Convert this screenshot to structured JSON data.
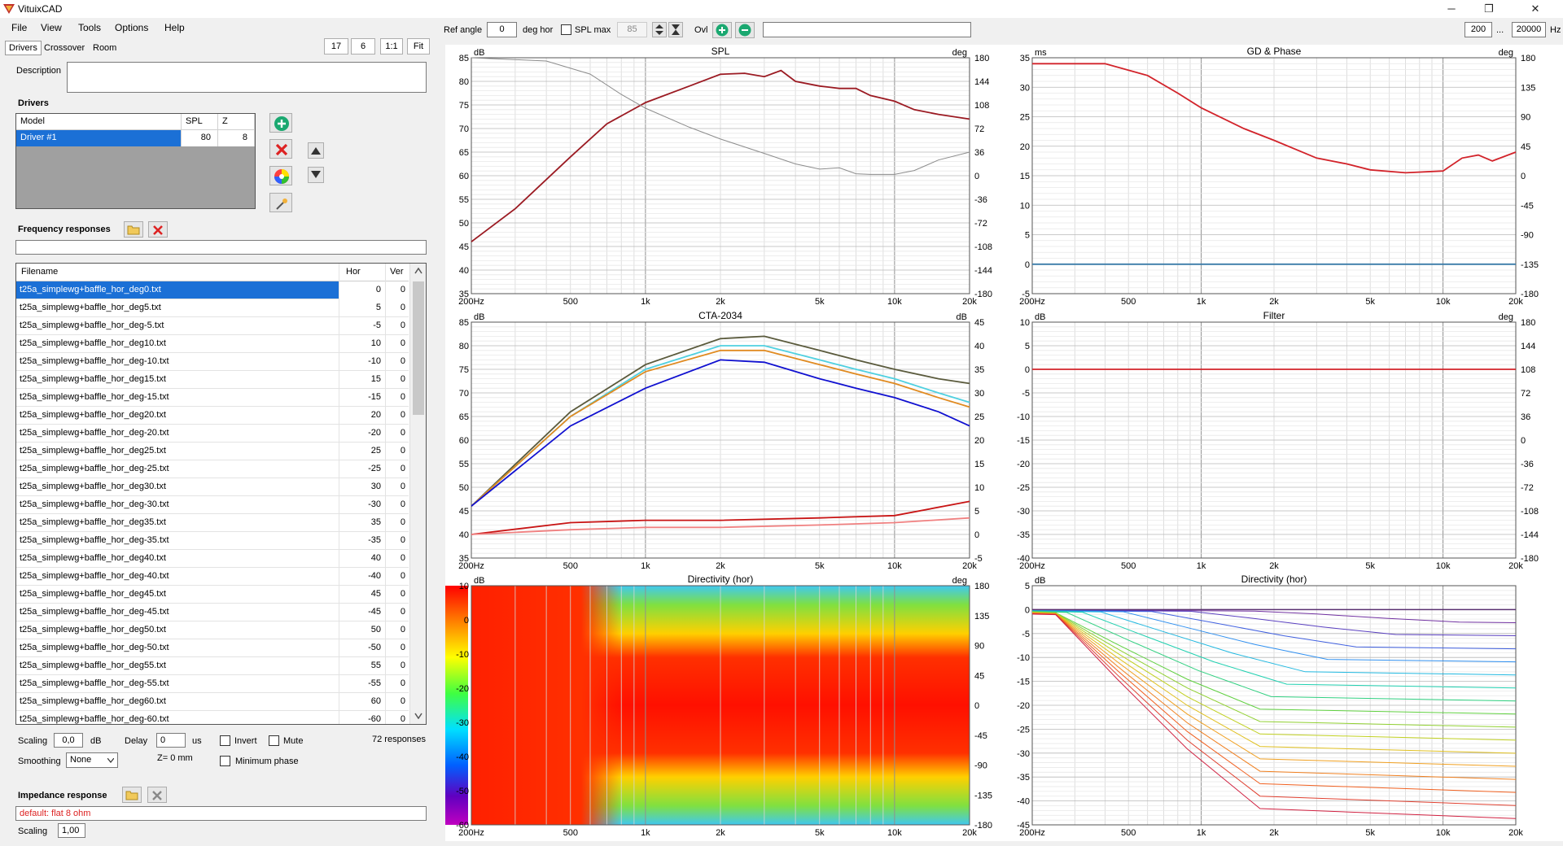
{
  "window": {
    "title": "VituixCAD",
    "min": "─",
    "max": "❐",
    "close": "✕"
  },
  "menu": [
    "File",
    "View",
    "Tools",
    "Options",
    "Help"
  ],
  "tabs": [
    "Drivers",
    "Crossover",
    "Room"
  ],
  "view_buttons": [
    "17",
    "6",
    "1:1",
    "Fit"
  ],
  "description_label": "Description",
  "drivers": {
    "title": "Drivers",
    "headers": [
      "Model",
      "SPL",
      "Z"
    ],
    "rows": [
      {
        "model": "Driver #1",
        "spl": "80",
        "z": "8"
      }
    ]
  },
  "freq": {
    "title": "Frequency responses",
    "headers": [
      "Filename",
      "Hor",
      "Ver"
    ],
    "rows": [
      {
        "f": "t25a_simplewg+baffle_hor_deg0.txt",
        "h": "0",
        "v": "0"
      },
      {
        "f": "t25a_simplewg+baffle_hor_deg5.txt",
        "h": "5",
        "v": "0"
      },
      {
        "f": "t25a_simplewg+baffle_hor_deg-5.txt",
        "h": "-5",
        "v": "0"
      },
      {
        "f": "t25a_simplewg+baffle_hor_deg10.txt",
        "h": "10",
        "v": "0"
      },
      {
        "f": "t25a_simplewg+baffle_hor_deg-10.txt",
        "h": "-10",
        "v": "0"
      },
      {
        "f": "t25a_simplewg+baffle_hor_deg15.txt",
        "h": "15",
        "v": "0"
      },
      {
        "f": "t25a_simplewg+baffle_hor_deg-15.txt",
        "h": "-15",
        "v": "0"
      },
      {
        "f": "t25a_simplewg+baffle_hor_deg20.txt",
        "h": "20",
        "v": "0"
      },
      {
        "f": "t25a_simplewg+baffle_hor_deg-20.txt",
        "h": "-20",
        "v": "0"
      },
      {
        "f": "t25a_simplewg+baffle_hor_deg25.txt",
        "h": "25",
        "v": "0"
      },
      {
        "f": "t25a_simplewg+baffle_hor_deg-25.txt",
        "h": "-25",
        "v": "0"
      },
      {
        "f": "t25a_simplewg+baffle_hor_deg30.txt",
        "h": "30",
        "v": "0"
      },
      {
        "f": "t25a_simplewg+baffle_hor_deg-30.txt",
        "h": "-30",
        "v": "0"
      },
      {
        "f": "t25a_simplewg+baffle_hor_deg35.txt",
        "h": "35",
        "v": "0"
      },
      {
        "f": "t25a_simplewg+baffle_hor_deg-35.txt",
        "h": "-35",
        "v": "0"
      },
      {
        "f": "t25a_simplewg+baffle_hor_deg40.txt",
        "h": "40",
        "v": "0"
      },
      {
        "f": "t25a_simplewg+baffle_hor_deg-40.txt",
        "h": "-40",
        "v": "0"
      },
      {
        "f": "t25a_simplewg+baffle_hor_deg45.txt",
        "h": "45",
        "v": "0"
      },
      {
        "f": "t25a_simplewg+baffle_hor_deg-45.txt",
        "h": "-45",
        "v": "0"
      },
      {
        "f": "t25a_simplewg+baffle_hor_deg50.txt",
        "h": "50",
        "v": "0"
      },
      {
        "f": "t25a_simplewg+baffle_hor_deg-50.txt",
        "h": "-50",
        "v": "0"
      },
      {
        "f": "t25a_simplewg+baffle_hor_deg55.txt",
        "h": "55",
        "v": "0"
      },
      {
        "f": "t25a_simplewg+baffle_hor_deg-55.txt",
        "h": "-55",
        "v": "0"
      },
      {
        "f": "t25a_simplewg+baffle_hor_deg60.txt",
        "h": "60",
        "v": "0"
      },
      {
        "f": "t25a_simplewg+baffle_hor_deg-60.txt",
        "h": "-60",
        "v": "0"
      }
    ]
  },
  "scaling": {
    "label": "Scaling",
    "value": "0,0",
    "unit": "dB"
  },
  "delay": {
    "label": "Delay",
    "value": "0",
    "unit": "us"
  },
  "invert": "Invert",
  "mute": "Mute",
  "responses_count": "72 responses",
  "smoothing": {
    "label": "Smoothing",
    "value": "None"
  },
  "z_label": "Z= 0 mm",
  "min_phase": "Minimum phase",
  "impedance": {
    "title": "Impedance response",
    "file": "default: flat 8 ohm",
    "scaling_label": "Scaling",
    "scaling_value": "1,00"
  },
  "toolbar": {
    "ref_angle_label": "Ref angle",
    "ref_angle": "0",
    "deg_hor": "deg hor",
    "spl_max_label": "SPL max",
    "spl_max": "85",
    "ovl": "Ovl",
    "freq_from": "200",
    "dots": "...",
    "freq_to": "20000",
    "hz": "Hz"
  },
  "colors": {
    "accent": "#1b70d6",
    "spl_red": "#9b1a22",
    "gd_red": "#d2232a"
  },
  "chart_data": [
    {
      "type": "line",
      "title": "SPL",
      "ylabel_left": "dB",
      "ylabel_right": "deg",
      "xlabel": "",
      "xticks": [
        "200Hz",
        "500",
        "1k",
        "2k",
        "5k",
        "10k",
        "20k"
      ],
      "yticks_left": [
        "85",
        "80",
        "75",
        "70",
        "65",
        "60",
        "55",
        "50",
        "45",
        "40",
        "35"
      ],
      "yticks_right": [
        "180",
        "144",
        "108",
        "72",
        "36",
        "0",
        "-36",
        "-72",
        "-108",
        "-144",
        "-180"
      ],
      "ylim": [
        35,
        85
      ],
      "xlim": [
        200,
        20000
      ],
      "series": [
        {
          "name": "SPL",
          "color": "#9b1a22",
          "x": [
            200,
            300,
            500,
            700,
            1000,
            1500,
            2000,
            2500,
            3000,
            3500,
            4000,
            5000,
            6000,
            7000,
            8000,
            10000,
            12000,
            15000,
            20000
          ],
          "y": [
            46,
            53,
            64,
            71,
            75.5,
            79,
            81.5,
            81.7,
            81,
            82.3,
            80,
            79,
            78.5,
            78.5,
            77,
            75.8,
            74,
            73,
            72
          ]
        },
        {
          "name": "Phase",
          "color": "#8c8c8c",
          "axis": "right",
          "x": [
            200,
            400,
            600,
            800,
            1000,
            1500,
            2000,
            3000,
            4000,
            5000,
            6000,
            7000,
            8000,
            10000,
            12000,
            15000,
            20000
          ],
          "y": [
            180,
            175,
            155,
            124,
            103,
            74,
            56,
            34,
            18,
            10,
            12,
            3,
            2,
            2,
            8,
            24,
            36
          ]
        }
      ]
    },
    {
      "type": "line",
      "title": "GD & Phase",
      "ylabel_left": "ms",
      "ylabel_right": "deg",
      "xticks": [
        "200Hz",
        "500",
        "1k",
        "2k",
        "5k",
        "10k",
        "20k"
      ],
      "yticks_left": [
        "35",
        "30",
        "25",
        "20",
        "15",
        "10",
        "5",
        "0",
        "-5"
      ],
      "yticks_right": [
        "180",
        "135",
        "90",
        "45",
        "0",
        "-45",
        "-90",
        "-135",
        "-180"
      ],
      "ylim": [
        -5,
        35
      ],
      "xlim": [
        200,
        20000
      ],
      "series": [
        {
          "name": "GD",
          "color": "#d2232a",
          "x": [
            200,
            400,
            600,
            800,
            1000,
            1500,
            2000,
            3000,
            4000,
            5000,
            7000,
            10000,
            12000,
            14000,
            16000,
            20000
          ],
          "y": [
            34,
            34,
            32,
            29,
            26.5,
            23,
            21,
            18,
            17,
            16,
            15.5,
            15.8,
            18,
            18.5,
            17.5,
            19
          ]
        },
        {
          "name": "Phase",
          "color": "#3a7ca8",
          "axis": "right",
          "x": [
            200,
            20000
          ],
          "y": [
            -135,
            -135
          ]
        }
      ]
    },
    {
      "type": "line",
      "title": "CTA-2034",
      "ylabel_left": "dB",
      "ylabel_right": "dB",
      "xticks": [
        "200Hz",
        "500",
        "1k",
        "2k",
        "5k",
        "10k",
        "20k"
      ],
      "yticks_left": [
        "85",
        "80",
        "75",
        "70",
        "65",
        "60",
        "55",
        "50",
        "45",
        "40",
        "35"
      ],
      "yticks_right": [
        "45",
        "40",
        "35",
        "30",
        "25",
        "20",
        "15",
        "10",
        "5",
        "0",
        "-5"
      ],
      "ylim": [
        35,
        85
      ],
      "xlim": [
        200,
        20000
      ],
      "series": [
        {
          "name": "On-axis",
          "color": "#5a5a3c",
          "x": [
            200,
            500,
            1000,
            2000,
            3000,
            5000,
            7000,
            10000,
            15000,
            20000
          ],
          "y": [
            46,
            66,
            76,
            81.5,
            82,
            79,
            77,
            75,
            73,
            72
          ]
        },
        {
          "name": "Listening window",
          "color": "#4fd0e0",
          "x": [
            200,
            500,
            1000,
            2000,
            3000,
            5000,
            7000,
            10000,
            15000,
            20000
          ],
          "y": [
            46,
            65,
            75,
            80,
            80,
            77,
            75,
            73,
            70,
            68
          ]
        },
        {
          "name": "Early reflections",
          "color": "#e08a20",
          "x": [
            200,
            500,
            1000,
            2000,
            3000,
            5000,
            7000,
            10000,
            15000,
            20000
          ],
          "y": [
            46,
            65,
            74.5,
            79,
            79,
            76,
            74,
            72,
            69,
            67
          ]
        },
        {
          "name": "Sound power",
          "color": "#1010d0",
          "x": [
            200,
            500,
            1000,
            2000,
            3000,
            5000,
            7000,
            10000,
            15000,
            20000
          ],
          "y": [
            46,
            63,
            71,
            77,
            76.5,
            73,
            71,
            69,
            66,
            63
          ]
        },
        {
          "name": "SP DI",
          "color": "#c81414",
          "axis": "right",
          "x": [
            200,
            500,
            1000,
            2000,
            5000,
            10000,
            20000
          ],
          "y": [
            0,
            2.5,
            3,
            3,
            3.5,
            4,
            7
          ]
        },
        {
          "name": "ER DI",
          "color": "#f08080",
          "axis": "right",
          "x": [
            200,
            500,
            1000,
            2000,
            5000,
            10000,
            20000
          ],
          "y": [
            0,
            1,
            1.5,
            1.5,
            2,
            2.5,
            3.5
          ]
        }
      ]
    },
    {
      "type": "line",
      "title": "Filter",
      "ylabel_left": "dB",
      "ylabel_right": "deg",
      "xticks": [
        "200Hz",
        "500",
        "1k",
        "2k",
        "5k",
        "10k",
        "20k"
      ],
      "yticks_left": [
        "10",
        "5",
        "0",
        "-5",
        "-10",
        "-15",
        "-20",
        "-25",
        "-30",
        "-35",
        "-40"
      ],
      "yticks_right": [
        "180",
        "144",
        "108",
        "72",
        "36",
        "0",
        "-36",
        "-72",
        "-108",
        "-144",
        "-180"
      ],
      "ylim": [
        -40,
        10
      ],
      "xlim": [
        200,
        20000
      ],
      "series": [
        {
          "name": "Filter",
          "color": "#d2232a",
          "x": [
            200,
            20000
          ],
          "y": [
            0,
            0
          ]
        }
      ]
    },
    {
      "type": "heatmap",
      "title": "Directivity (hor)",
      "ylabel_left": "dB",
      "ylabel_right": "deg",
      "xticks": [
        "200Hz",
        "500",
        "1k",
        "2k",
        "5k",
        "10k",
        "20k"
      ],
      "yticks_left": [
        "10",
        "0",
        "-10",
        "-20",
        "-30",
        "-40",
        "-50",
        "-60"
      ],
      "yticks_right": [
        "180",
        "135",
        "90",
        "45",
        "0",
        "-45",
        "-90",
        "-135",
        "-180"
      ],
      "ylim": [
        -180,
        180
      ],
      "xlim": [
        200,
        20000
      ]
    },
    {
      "type": "line",
      "title": "Directivity (hor)",
      "ylabel_left": "dB",
      "xticks": [
        "200Hz",
        "500",
        "1k",
        "2k",
        "5k",
        "10k",
        "20k"
      ],
      "yticks_left": [
        "5",
        "0",
        "-5",
        "-10",
        "-15",
        "-20",
        "-25",
        "-30",
        "-35",
        "-40",
        "-45"
      ],
      "ylim": [
        -45,
        5
      ],
      "xlim": [
        200,
        20000
      ],
      "series_note": "normalized off-axis curves 0..180 deg"
    }
  ]
}
